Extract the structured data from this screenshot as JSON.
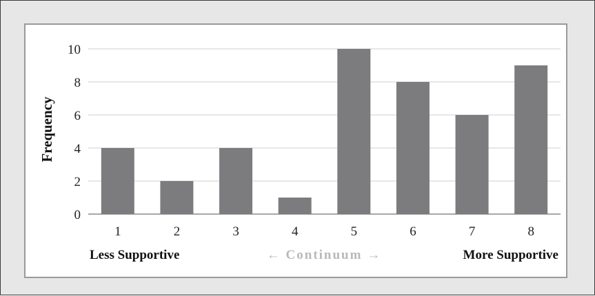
{
  "chart_data": {
    "type": "bar",
    "categories": [
      "1",
      "2",
      "3",
      "4",
      "5",
      "6",
      "7",
      "8"
    ],
    "values": [
      4,
      2,
      4,
      1,
      10,
      8,
      6,
      9
    ],
    "ylabel": "Frequency",
    "xlabel": "",
    "ylim": [
      0,
      10
    ],
    "yticks": [
      "0",
      "2",
      "4",
      "6",
      "8",
      "10"
    ],
    "grid": true,
    "bar_color": "#7c7c7e",
    "footer": {
      "left": "Less Supportive",
      "middle": "← Continuum →",
      "right": "More Supportive"
    }
  }
}
